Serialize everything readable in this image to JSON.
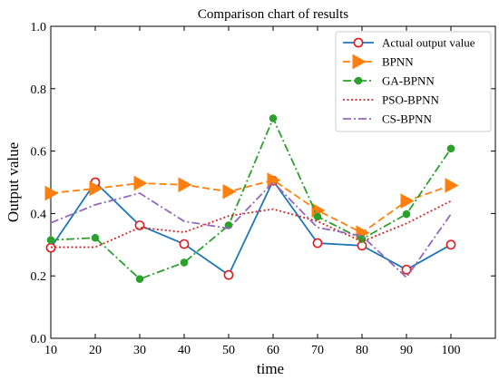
{
  "chart_data": {
    "type": "line",
    "title": "Comparison chart of results",
    "xlabel": "time",
    "ylabel": "Output value",
    "x": [
      10,
      20,
      30,
      40,
      50,
      60,
      70,
      80,
      90,
      100
    ],
    "xlim": [
      10,
      110
    ],
    "ylim": [
      0,
      1.0
    ],
    "xticks": [
      "10",
      "20",
      "30",
      "40",
      "50",
      "60",
      "70",
      "80",
      "90",
      "100"
    ],
    "yticks": [
      "0.0",
      "0.2",
      "0.4",
      "0.6",
      "0.8",
      "1.0"
    ],
    "grid": false,
    "legend_position": "top-right",
    "series": [
      {
        "name": "Actual output value",
        "color": "#1f77b4",
        "line_style": "solid",
        "marker": "open-circle",
        "marker_color": "#e31a1c",
        "values": [
          0.29,
          0.5,
          0.362,
          0.302,
          0.203,
          0.505,
          0.305,
          0.297,
          0.22,
          0.3
        ]
      },
      {
        "name": "BPNN",
        "color": "#ff7f0e",
        "line_style": "dashed",
        "marker": "right-triangle",
        "marker_color": "#ff7f0e",
        "values": [
          0.465,
          0.48,
          0.497,
          0.492,
          0.47,
          0.507,
          0.41,
          0.338,
          0.44,
          0.49
        ]
      },
      {
        "name": "GA-BPNN",
        "color": "#2ca02c",
        "line_style": "dashdot",
        "marker": "filled-circle",
        "marker_color": "#2ca02c",
        "values": [
          0.315,
          0.322,
          0.19,
          0.243,
          0.362,
          0.705,
          0.39,
          0.318,
          0.398,
          0.608
        ]
      },
      {
        "name": "PSO-BPNN",
        "color": "#d62728",
        "line_style": "dotted",
        "marker": "none",
        "marker_color": "#d62728",
        "values": [
          0.292,
          0.292,
          0.355,
          0.34,
          0.392,
          0.414,
          0.375,
          0.31,
          0.368,
          0.44
        ]
      },
      {
        "name": "CS-BPNN",
        "color": "#9467bd",
        "line_style": "dashdot",
        "marker": "none",
        "marker_color": "#9467bd",
        "values": [
          0.37,
          0.428,
          0.465,
          0.375,
          0.352,
          0.5,
          0.355,
          0.328,
          0.195,
          0.398
        ]
      }
    ]
  }
}
